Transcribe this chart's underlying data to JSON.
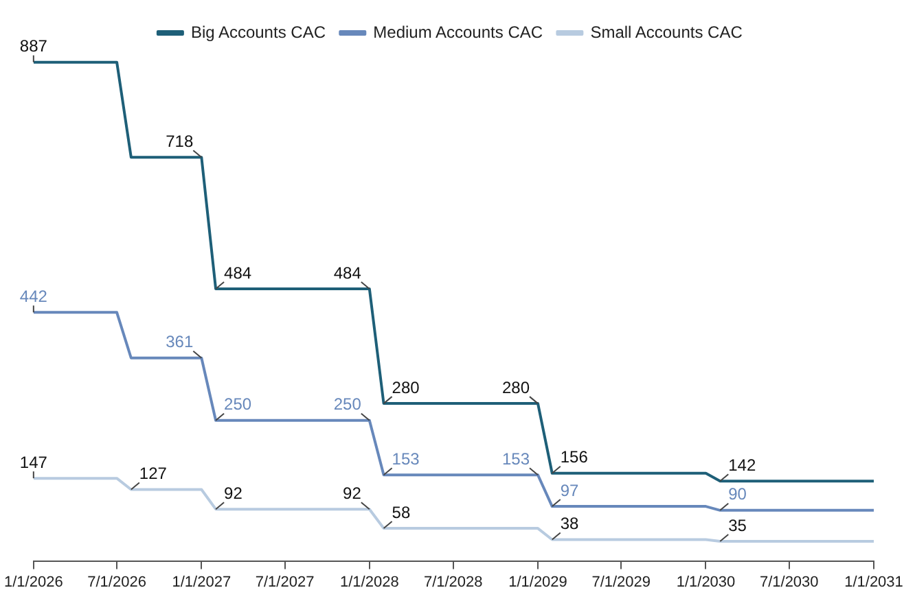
{
  "chart_data": {
    "type": "line",
    "x": [
      "2026-01-01",
      "2026-07-01",
      "2026-08-01",
      "2027-01-01",
      "2027-02-01",
      "2028-01-01",
      "2028-02-01",
      "2029-01-01",
      "2029-02-01",
      "2030-01-01",
      "2030-02-01",
      "2031-01-01"
    ],
    "series": [
      {
        "name": "Big Accounts CAC",
        "color": "#1e5f78",
        "values": [
          887,
          887,
          718,
          718,
          484,
          484,
          280,
          280,
          156,
          156,
          142,
          142
        ],
        "value_labels": [
          "887",
          null,
          null,
          "718",
          "484",
          "484",
          "280",
          "280",
          "156",
          null,
          "142",
          null
        ]
      },
      {
        "name": "Medium Accounts CAC",
        "color": "#6788bb",
        "values": [
          442,
          442,
          361,
          361,
          250,
          250,
          153,
          153,
          97,
          97,
          90,
          90
        ],
        "value_labels": [
          "442",
          null,
          null,
          "361",
          "250",
          "250",
          "153",
          "153",
          "97",
          null,
          "90",
          null
        ]
      },
      {
        "name": "Small Accounts CAC",
        "color": "#b8cbe0",
        "values": [
          147,
          147,
          127,
          127,
          92,
          92,
          58,
          58,
          38,
          38,
          35,
          35
        ],
        "value_labels": [
          "147",
          null,
          "127",
          null,
          "92",
          "92",
          "58",
          null,
          "38",
          null,
          "35",
          null
        ]
      }
    ],
    "xlim": [
      "2026-01-01",
      "2031-01-01"
    ],
    "xticks": [
      {
        "value": "2026-01-01",
        "label": "1/1/2026"
      },
      {
        "value": "2026-07-01",
        "label": "7/1/2026"
      },
      {
        "value": "2027-01-01",
        "label": "1/1/2027"
      },
      {
        "value": "2027-07-01",
        "label": "7/1/2027"
      },
      {
        "value": "2028-01-01",
        "label": "1/1/2028"
      },
      {
        "value": "2028-07-01",
        "label": "7/1/2028"
      },
      {
        "value": "2029-01-01",
        "label": "1/1/2029"
      },
      {
        "value": "2029-07-01",
        "label": "7/1/2029"
      },
      {
        "value": "2030-01-01",
        "label": "1/1/2030"
      },
      {
        "value": "2030-07-01",
        "label": "7/1/2030"
      },
      {
        "value": "2031-01-01",
        "label": "1/1/2031"
      }
    ],
    "tick_labels": "x",
    "grid": false,
    "legend": "top",
    "marker": "none",
    "line_style": "solid"
  }
}
